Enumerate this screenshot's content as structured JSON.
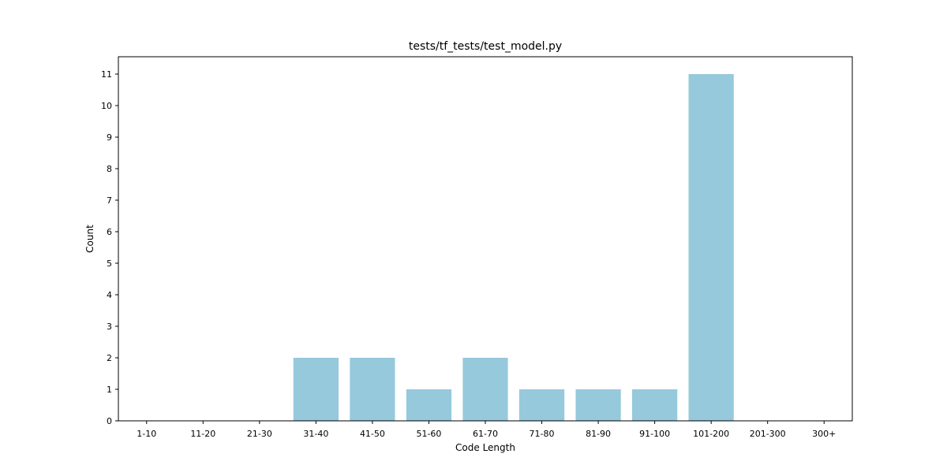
{
  "chart_data": {
    "type": "bar",
    "title": "tests/tf_tests/test_model.py",
    "xlabel": "Code Length",
    "ylabel": "Count",
    "categories": [
      "1-10",
      "11-20",
      "21-30",
      "31-40",
      "41-50",
      "51-60",
      "61-70",
      "71-80",
      "81-90",
      "91-100",
      "101-200",
      "201-300",
      "300+"
    ],
    "values": [
      0,
      0,
      0,
      2,
      2,
      1,
      2,
      1,
      1,
      1,
      11,
      0,
      0
    ],
    "ylim": [
      0,
      11.55
    ],
    "yticks": [
      0,
      1,
      2,
      3,
      4,
      5,
      6,
      7,
      8,
      9,
      10,
      11
    ],
    "grid": false,
    "legend": "none",
    "bar_color": "#96c9dc",
    "axis_color": "#000000"
  }
}
